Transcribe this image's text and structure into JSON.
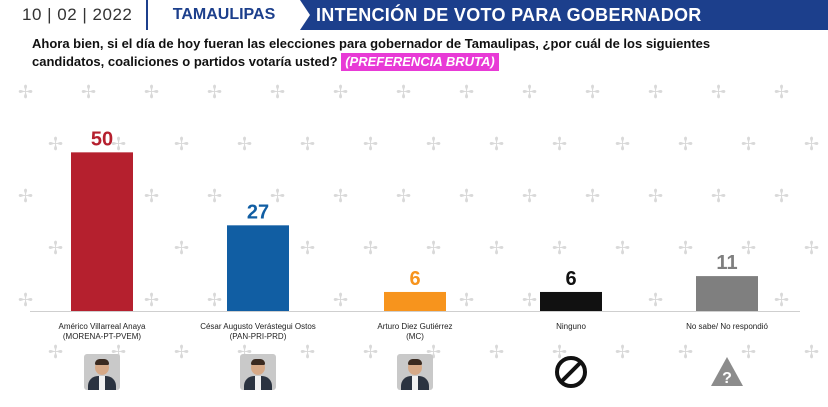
{
  "header": {
    "date": "10 | 02 | 2022",
    "state": "TAMAULIPAS",
    "title": "INTENCIÓN DE VOTO PARA GOBERNADOR"
  },
  "question": {
    "text": "Ahora bien, si el día de hoy fueran las elecciones para gobernador de Tamaulipas, ¿por cuál de los siguientes candidatos, coaliciones o partidos votaría usted?",
    "tag": "(PREFERENCIA BRUTA)"
  },
  "colors": {
    "header_blue": "#1c3f8c",
    "tag_magenta": "#e83ad6"
  },
  "chart_data": {
    "type": "bar",
    "categories": [
      [
        "Américo Villarreal Anaya",
        "(MORENA-PT-PVEM)"
      ],
      [
        "César Augusto Verástegui Ostos",
        "(PAN-PRI-PRD)"
      ],
      [
        "Arturo Diez Gutiérrez",
        "(MC)"
      ],
      [
        "Ninguno"
      ],
      [
        "No sabe/ No respondió"
      ]
    ],
    "values": [
      50,
      27,
      6,
      6,
      11
    ],
    "value_labels": [
      "50",
      "27",
      "6",
      "6",
      "11"
    ],
    "bar_colors": [
      "#b5202e",
      "#115ea3",
      "#f7941d",
      "#111111",
      "#7f7f7f"
    ],
    "label_colors": [
      "#b5202e",
      "#115ea3",
      "#f7941d",
      "#111111",
      "#7f7f7f"
    ],
    "icons": [
      "candidate-photo",
      "candidate-photo",
      "candidate-photo",
      "prohibited-icon",
      "question-warning-icon"
    ],
    "ylim": [
      0,
      52
    ],
    "grid": false,
    "legend": "none"
  }
}
